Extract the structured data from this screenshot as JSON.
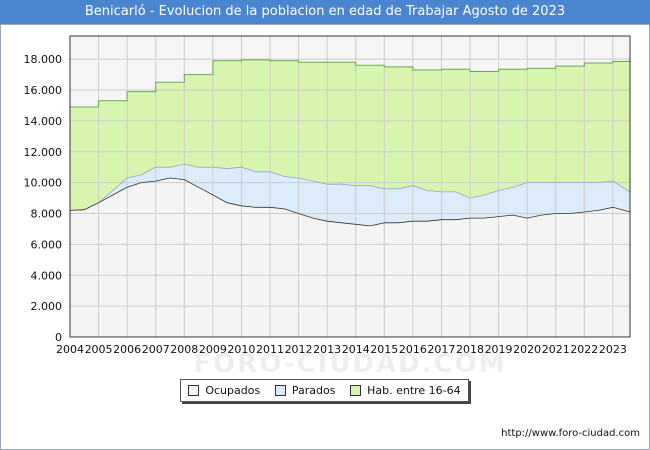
{
  "header": {
    "title": "Benicarló - Evolucion de la poblacion en edad de Trabajar Agosto de 2023"
  },
  "footer": {
    "url": "http://www.foro-ciudad.com"
  },
  "watermark": "FORO-CIUDAD.COM",
  "chart_data": {
    "type": "area",
    "title": "Benicarló - Evolucion de la poblacion en edad de Trabajar Agosto de 2023",
    "xlabel": "",
    "ylabel": "",
    "xlim": [
      2004,
      2023.6
    ],
    "ylim": [
      0,
      19500
    ],
    "y_ticks": [
      0,
      2000,
      4000,
      6000,
      8000,
      10000,
      12000,
      14000,
      16000,
      18000
    ],
    "y_tick_labels": [
      "0",
      "2.000",
      "4.000",
      "6.000",
      "8.000",
      "10.000",
      "12.000",
      "14.000",
      "16.000",
      "18.000"
    ],
    "x_ticks": [
      2004,
      2005,
      2006,
      2007,
      2008,
      2009,
      2010,
      2011,
      2012,
      2013,
      2014,
      2015,
      2016,
      2017,
      2018,
      2019,
      2020,
      2021,
      2022,
      2023
    ],
    "x_tick_labels": [
      "2004",
      "2005",
      "2006",
      "2007",
      "2008",
      "2009",
      "2010",
      "2011",
      "2012",
      "2013",
      "2014",
      "2015",
      "2016",
      "2017",
      "2018",
      "2019",
      "2020",
      "2021",
      "2022",
      "2023"
    ],
    "grid": true,
    "legend_position": "bottom-center",
    "colors": {
      "ocupados": "#f4f4f4",
      "parados": "#dcecfb",
      "hab": "#d8f5b0",
      "hab_line": "#6aa84f",
      "ocupados_line": "#333333",
      "parados_line": "#8fa9c8",
      "grid": "#cccccc",
      "plot_bg": "#f5f5f5"
    },
    "series": [
      {
        "name": "Ocupados",
        "x": [
          2004.0,
          2004.5,
          2005.0,
          2005.5,
          2006.0,
          2006.5,
          2007.0,
          2007.5,
          2008.0,
          2008.5,
          2009.0,
          2009.5,
          2010.0,
          2010.5,
          2011.0,
          2011.5,
          2012.0,
          2012.5,
          2013.0,
          2013.5,
          2014.0,
          2014.5,
          2015.0,
          2015.5,
          2016.0,
          2016.5,
          2017.0,
          2017.5,
          2018.0,
          2018.5,
          2019.0,
          2019.5,
          2020.0,
          2020.5,
          2021.0,
          2021.5,
          2022.0,
          2022.5,
          2023.0,
          2023.6
        ],
        "values": [
          8200,
          8250,
          8700,
          9200,
          9700,
          10000,
          10100,
          10300,
          10200,
          9700,
          9200,
          8700,
          8500,
          8400,
          8400,
          8300,
          8000,
          7700,
          7500,
          7400,
          7300,
          7200,
          7400,
          7400,
          7500,
          7500,
          7600,
          7600,
          7700,
          7700,
          7800,
          7900,
          7700,
          7900,
          8000,
          8000,
          8100,
          8200,
          8400,
          8100
        ]
      },
      {
        "name": "Parados",
        "x": [
          2004.0,
          2004.5,
          2005.0,
          2005.5,
          2006.0,
          2006.5,
          2007.0,
          2007.5,
          2008.0,
          2008.5,
          2009.0,
          2009.5,
          2010.0,
          2010.5,
          2011.0,
          2011.5,
          2012.0,
          2012.5,
          2013.0,
          2013.5,
          2014.0,
          2014.5,
          2015.0,
          2015.5,
          2016.0,
          2016.5,
          2017.0,
          2017.5,
          2018.0,
          2018.5,
          2019.0,
          2019.5,
          2020.0,
          2020.5,
          2021.0,
          2021.5,
          2022.0,
          2022.5,
          2023.0,
          2023.6
        ],
        "values": [
          0,
          0,
          0,
          300,
          600,
          500,
          900,
          700,
          1000,
          1300,
          1800,
          2200,
          2500,
          2300,
          2300,
          2100,
          2300,
          2400,
          2400,
          2500,
          2500,
          2600,
          2200,
          2200,
          2300,
          2000,
          1800,
          1800,
          1300,
          1500,
          1700,
          1800,
          2300,
          2100,
          2000,
          2000,
          1900,
          1800,
          1700,
          1300
        ]
      },
      {
        "name": "Hab. entre 16-64",
        "x": [
          2004.0,
          2004.5,
          2005.0,
          2005.5,
          2006.0,
          2006.5,
          2007.0,
          2007.5,
          2008.0,
          2008.5,
          2009.0,
          2009.5,
          2010.0,
          2010.5,
          2011.0,
          2011.5,
          2012.0,
          2012.5,
          2013.0,
          2013.5,
          2014.0,
          2014.5,
          2015.0,
          2015.5,
          2016.0,
          2016.5,
          2017.0,
          2017.5,
          2018.0,
          2018.5,
          2019.0,
          2019.5,
          2020.0,
          2020.5,
          2021.0,
          2021.5,
          2022.0,
          2022.5,
          2023.0,
          2023.6
        ],
        "values": [
          14900,
          14900,
          15300,
          15300,
          15900,
          15900,
          16500,
          16500,
          17000,
          17000,
          17900,
          17900,
          17950,
          17950,
          17900,
          17900,
          17800,
          17800,
          17800,
          17800,
          17600,
          17600,
          17500,
          17500,
          17300,
          17300,
          17350,
          17350,
          17200,
          17200,
          17350,
          17350,
          17400,
          17400,
          17550,
          17550,
          17750,
          17750,
          17850,
          17850
        ]
      }
    ],
    "legend": [
      "Ocupados",
      "Parados",
      "Hab. entre 16-64"
    ]
  }
}
